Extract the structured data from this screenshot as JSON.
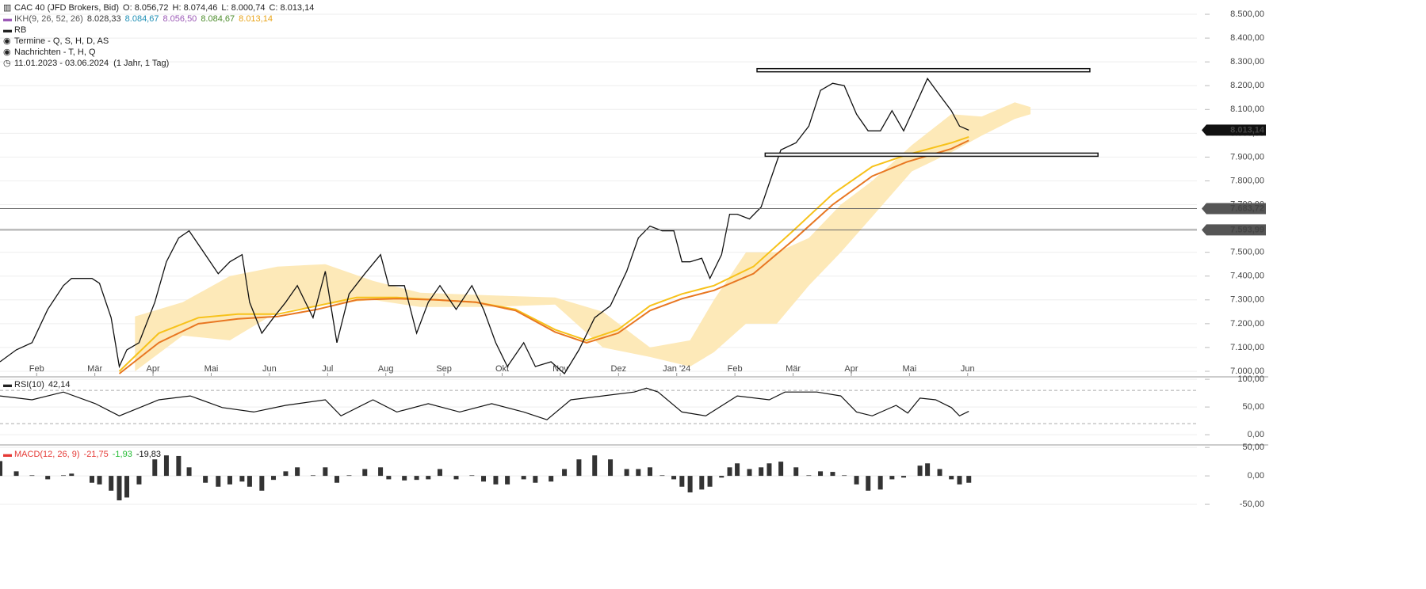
{
  "chart_data": [
    {
      "type": "line",
      "title": "CAC 40 (JFD Brokers, Bid)",
      "ohlc": [
        "O: 8.056,72",
        "H: 8.074,46",
        "L: 8.000,74",
        "C: 8.013,14"
      ],
      "ikh_label": "IKH(9, 26, 52, 26)",
      "ikh_values": [
        {
          "text": "8.028,33",
          "color": "#333333"
        },
        {
          "text": "8.084,67",
          "color": "#1f8fb5"
        },
        {
          "text": "8.056,50",
          "color": "#9b59b6"
        },
        {
          "text": "8.084,67",
          "color": "#4c8c2b"
        },
        {
          "text": "8.013,14",
          "color": "#e8a317"
        }
      ],
      "rb": "RB",
      "termine": "Termine - Q, S, H, D, AS",
      "nachrichten": "Nachrichten - T, H, Q",
      "range": "11.01.2023 - 03.06.2024  (1 Jahr, 1 Tag)",
      "color": "#111111",
      "x": [
        0.37,
        0.65,
        0.92,
        1.19,
        1.46,
        1.6,
        1.95,
        2.08,
        2.28,
        2.42,
        2.55,
        2.76,
        3.03,
        3.23,
        3.44,
        3.62,
        3.9,
        4.12,
        4.32,
        4.53,
        4.66,
        4.87,
        5.07,
        5.28,
        5.48,
        5.75,
        5.96,
        6.16,
        6.37,
        6.64,
        6.91,
        7.05,
        7.32,
        7.53,
        7.73,
        7.93,
        8.21,
        8.48,
        8.68,
        8.89,
        9.09,
        9.37,
        9.57,
        9.84,
        10.07,
        10.32,
        10.59,
        10.86,
        11.14,
        11.34,
        11.54,
        11.75,
        11.95,
        12.09,
        12.23,
        12.43,
        12.57,
        12.77,
        12.91,
        13.04,
        13.25,
        13.45,
        13.59,
        13.79,
        14.05,
        14.27,
        14.47,
        14.68,
        14.88,
        15.09,
        15.29,
        15.5,
        15.7,
        15.9,
        16.18,
        16.31,
        16.52,
        16.72,
        16.86,
        17.02
      ],
      "values": [
        7040,
        7090,
        7120,
        7260,
        7360,
        7390,
        7390,
        7370,
        7225,
        7020,
        7090,
        7120,
        7290,
        7460,
        7560,
        7590,
        7490,
        7410,
        7460,
        7490,
        7290,
        7160,
        7225,
        7290,
        7360,
        7225,
        7420,
        7120,
        7325,
        7410,
        7490,
        7360,
        7360,
        7160,
        7290,
        7360,
        7260,
        7360,
        7260,
        7120,
        7020,
        7120,
        7020,
        7040,
        6990,
        7090,
        7225,
        7275,
        7420,
        7560,
        7610,
        7590,
        7590,
        7460,
        7460,
        7475,
        7390,
        7490,
        7660,
        7660,
        7640,
        7690,
        7790,
        7930,
        7960,
        8030,
        8180,
        8210,
        8200,
        8080,
        8010,
        8010,
        8095,
        8010,
        8160,
        8230,
        8160,
        8095,
        8030,
        8013.14
      ],
      "ma_x": [
        2.42,
        3.1,
        3.78,
        4.46,
        5.14,
        5.82,
        6.5,
        7.19,
        7.87,
        8.55,
        9.23,
        9.91,
        10.45,
        10.99,
        11.54,
        12.09,
        12.64,
        13.32,
        14.0,
        14.68,
        15.36,
        15.96,
        16.72,
        17.02
      ],
      "ma": [
        {
          "color": "#f7c21b",
          "values": [
            7000,
            7160,
            7225,
            7240,
            7240,
            7275,
            7310,
            7310,
            7300,
            7290,
            7260,
            7175,
            7130,
            7175,
            7275,
            7325,
            7360,
            7440,
            7590,
            7745,
            7860,
            7910,
            7960,
            7985
          ]
        },
        {
          "color": "#e87722",
          "values": [
            6990,
            7120,
            7200,
            7220,
            7230,
            7260,
            7300,
            7305,
            7300,
            7290,
            7255,
            7165,
            7120,
            7160,
            7255,
            7305,
            7340,
            7410,
            7550,
            7700,
            7820,
            7880,
            7935,
            7970
          ]
        }
      ],
      "cloud": {
        "color": "#fde9b8",
        "x": [
          2.69,
          3.51,
          4.32,
          5.14,
          5.96,
          6.78,
          7.59,
          8.68,
          9.91,
          10.73,
          11.54,
          12.23,
          12.64,
          13.19,
          13.72,
          14.27,
          14.82,
          15.36,
          16.04,
          16.72,
          17.24,
          17.81,
          18.08
        ],
        "upper": [
          7230,
          7290,
          7400,
          7440,
          7450,
          7380,
          7330,
          7320,
          7310,
          7250,
          7100,
          7130,
          7300,
          7500,
          7500,
          7560,
          7700,
          7800,
          7950,
          8080,
          8070,
          8130,
          8110
        ],
        "lower": [
          7000,
          7150,
          7130,
          7250,
          7280,
          7300,
          7270,
          7270,
          7280,
          7100,
          7060,
          7020,
          7080,
          7200,
          7200,
          7360,
          7500,
          7650,
          7840,
          7920,
          7990,
          8060,
          8080
        ]
      },
      "levels": [
        {
          "value": 7683.72,
          "label": "7.683,72"
        },
        {
          "value": 7593.99,
          "label": "7.593,99"
        }
      ],
      "last_price": {
        "value": 8013.14,
        "label": "8.013,14"
      },
      "channel": [
        {
          "value": 8265,
          "from": 13.38,
          "to": 19.1
        },
        {
          "value": 7910,
          "from": 13.52,
          "to": 19.24
        }
      ],
      "xlim": [
        0.37,
        20.94
      ],
      "xticks": [
        {
          "value": 1,
          "label": "Feb"
        },
        {
          "value": 2,
          "label": "Mär"
        },
        {
          "value": 3,
          "label": "Apr"
        },
        {
          "value": 4,
          "label": "Mai"
        },
        {
          "value": 5,
          "label": "Jun"
        },
        {
          "value": 6,
          "label": "Jul"
        },
        {
          "value": 7,
          "label": "Aug"
        },
        {
          "value": 8,
          "label": "Sep"
        },
        {
          "value": 9,
          "label": "Okt"
        },
        {
          "value": 10,
          "label": "Nov"
        },
        {
          "value": 11,
          "label": "Dez"
        },
        {
          "value": 12,
          "label": "Jan '24"
        },
        {
          "value": 13,
          "label": "Feb"
        },
        {
          "value": 14,
          "label": "Mär"
        },
        {
          "value": 15,
          "label": "Apr"
        },
        {
          "value": 16,
          "label": "Mai"
        },
        {
          "value": 17,
          "label": "Jun"
        }
      ],
      "ylim": [
        6980,
        8560
      ],
      "yticks": [
        {
          "value": 7000,
          "label": "7.000,00"
        },
        {
          "value": 7100,
          "label": "7.100,00"
        },
        {
          "value": 7200,
          "label": "7.200,00"
        },
        {
          "value": 7300,
          "label": "7.300,00"
        },
        {
          "value": 7400,
          "label": "7.400,00"
        },
        {
          "value": 7500,
          "label": "7.500,00"
        },
        {
          "value": 7600,
          "label": "7.600,00"
        },
        {
          "value": 7700,
          "label": "7.700,00"
        },
        {
          "value": 7800,
          "label": "7.800,00"
        },
        {
          "value": 7900,
          "label": "7.900,00"
        },
        {
          "value": 8000,
          "label": "8.000,00"
        },
        {
          "value": 8100,
          "label": "8.100,00"
        },
        {
          "value": 8200,
          "label": "8.200,00"
        },
        {
          "value": 8300,
          "label": "8.300,00"
        },
        {
          "value": 8400,
          "label": "8.400,00"
        },
        {
          "value": 8500,
          "label": "8.500,00"
        }
      ],
      "grid": true
    },
    {
      "type": "line",
      "title": "RSI(10)",
      "value_label": "42,14",
      "color": "#111111",
      "x": [
        0.37,
        0.92,
        1.46,
        2.01,
        2.42,
        3.1,
        3.64,
        4.19,
        4.73,
        5.28,
        5.96,
        6.23,
        6.78,
        7.19,
        7.73,
        8.27,
        8.82,
        9.37,
        9.77,
        10.18,
        10.73,
        11.27,
        11.48,
        11.68,
        12.09,
        12.5,
        13.04,
        13.59,
        13.86,
        14.41,
        14.82,
        15.09,
        15.36,
        15.77,
        15.97,
        16.18,
        16.45,
        16.72,
        16.86,
        17.02
      ],
      "values": [
        70,
        63,
        77,
        56,
        34,
        63,
        70,
        49,
        41,
        53,
        63,
        34,
        63,
        41,
        56,
        41,
        56,
        41,
        27,
        63,
        70,
        77,
        84,
        77,
        41,
        34,
        70,
        63,
        77,
        77,
        70,
        41,
        34,
        53,
        39,
        66,
        63,
        49,
        34,
        42.14
      ],
      "levels": [
        80,
        20
      ],
      "xlim": [
        0.37,
        20.94
      ],
      "ylim": [
        -17,
        103
      ],
      "yticks": [
        {
          "value": 0,
          "label": "0,00"
        },
        {
          "value": 50,
          "label": "50,00"
        },
        {
          "value": 100,
          "label": "100,00"
        }
      ],
      "grid": true
    },
    {
      "type": "bar",
      "title": "MACD(12, 26, 9)",
      "value_labels": [
        {
          "text": "-21,75",
          "color": "#e53935"
        },
        {
          "text": "-1,93",
          "color": "#22bb33"
        },
        {
          "text": "-19,83",
          "color": "#111111"
        }
      ],
      "color": "#333333",
      "x": [
        0.37,
        0.65,
        0.92,
        1.19,
        1.46,
        1.6,
        1.95,
        2.08,
        2.28,
        2.42,
        2.55,
        2.76,
        3.03,
        3.23,
        3.44,
        3.62,
        3.9,
        4.12,
        4.32,
        4.53,
        4.66,
        4.87,
        5.07,
        5.28,
        5.48,
        5.75,
        5.96,
        6.16,
        6.37,
        6.64,
        6.91,
        7.05,
        7.32,
        7.53,
        7.73,
        7.93,
        8.21,
        8.48,
        8.68,
        8.89,
        9.09,
        9.37,
        9.57,
        9.84,
        10.07,
        10.32,
        10.59,
        10.86,
        11.14,
        11.34,
        11.54,
        11.75,
        11.95,
        12.09,
        12.23,
        12.43,
        12.57,
        12.77,
        12.91,
        13.04,
        13.25,
        13.45,
        13.59,
        13.79,
        14.05,
        14.27,
        14.47,
        14.68,
        14.88,
        15.09,
        15.29,
        15.5,
        15.7,
        15.9,
        16.18,
        16.31,
        16.52,
        16.72,
        16.86,
        17.02
      ],
      "values": [
        26,
        8,
        1,
        -6,
        1,
        4,
        -12,
        -15,
        -26,
        -43,
        -38,
        -15,
        29,
        36,
        35,
        15,
        -12,
        -19,
        -15,
        -10,
        -19,
        -26,
        -7,
        8,
        15,
        1,
        15,
        -12,
        1,
        12,
        15,
        -6,
        -8,
        -7,
        -6,
        12,
        -6,
        1,
        -10,
        -15,
        -15,
        -6,
        -12,
        -10,
        12,
        29,
        36,
        29,
        12,
        12,
        15,
        1,
        -6,
        -19,
        -29,
        -24,
        -19,
        -3,
        15,
        22,
        12,
        15,
        22,
        25,
        15,
        1,
        8,
        7,
        1,
        -15,
        -26,
        -24,
        -6,
        -3,
        18,
        22,
        12,
        -6,
        -15,
        -12
      ],
      "xlim": [
        0.37,
        20.94
      ],
      "ylim": [
        -68,
        53
      ],
      "yticks": [
        {
          "value": -50,
          "label": "-50,00"
        },
        {
          "value": 0,
          "label": "0,00"
        },
        {
          "value": 50,
          "label": "50,00"
        }
      ],
      "grid": true
    }
  ]
}
